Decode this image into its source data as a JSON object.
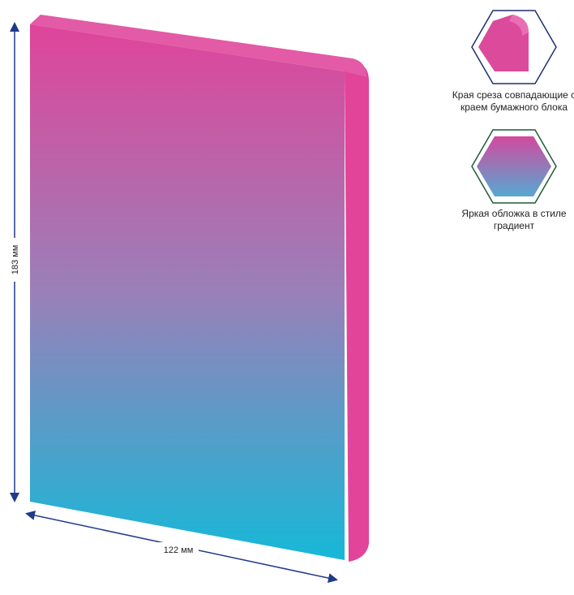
{
  "product": {
    "height_label": "183 мм",
    "width_label": "122 мм",
    "colors": {
      "top": "#e0449a",
      "middle": "#9a80b8",
      "bottom": "#16b8d8",
      "edge": "#e2449a",
      "arrow": "#1f3a8a"
    }
  },
  "features": [
    {
      "icon": "rounded-edge-icon",
      "label": "Края среза совпадающие с краем бумажного блока",
      "border": "#1f2f6e"
    },
    {
      "icon": "gradient-hexagon-icon",
      "label": "Яркая обложка в стиле градиент",
      "border": "#1e5a3a"
    }
  ]
}
